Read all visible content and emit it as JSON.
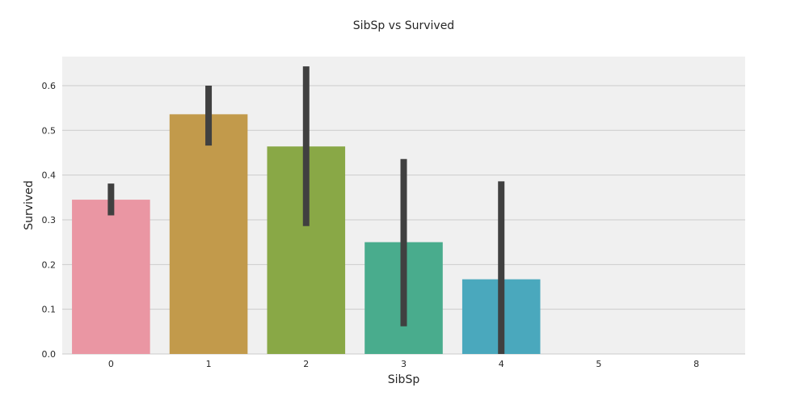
{
  "chart_data": {
    "type": "bar",
    "title": "SibSp vs Survived",
    "xlabel": "SibSp",
    "ylabel": "Survived",
    "categories": [
      "0",
      "1",
      "2",
      "3",
      "4",
      "5",
      "8"
    ],
    "values": [
      0.345,
      0.536,
      0.464,
      0.25,
      0.167,
      0.0,
      0.0
    ],
    "error_bars": [
      [
        0.31,
        0.381
      ],
      [
        0.466,
        0.6
      ],
      [
        0.286,
        0.643
      ],
      [
        0.062,
        0.436
      ],
      [
        0.0,
        0.386
      ],
      null,
      null
    ],
    "colors": [
      "#ea96a3",
      "#c29a4b",
      "#89a846",
      "#49ac8d",
      "#4aa8bd",
      "#a1a8e5",
      "#e48ee3"
    ],
    "error_color": "#404040",
    "ylim": [
      0,
      0.665
    ],
    "yticks": [
      "0.0",
      "0.1",
      "0.2",
      "0.3",
      "0.4",
      "0.5",
      "0.6"
    ],
    "ytick_values": [
      0.0,
      0.1,
      0.2,
      0.3,
      0.4,
      0.5,
      0.6
    ],
    "grid": "horizontal",
    "background": "#f0f0f0",
    "gridline_color": "#cbcbcb"
  }
}
